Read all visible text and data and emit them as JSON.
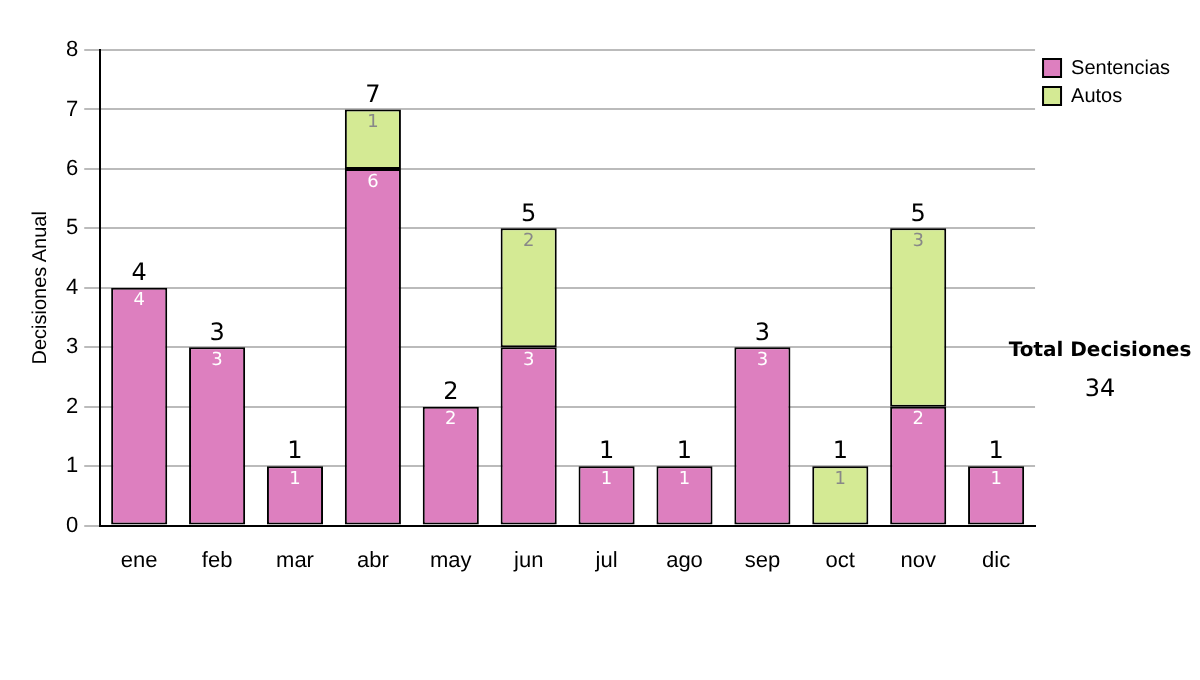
{
  "chart_data": {
    "type": "bar",
    "ylabel": "Decisiones Anual",
    "categories": [
      "ene",
      "feb",
      "mar",
      "abr",
      "may",
      "jun",
      "jul",
      "ago",
      "sep",
      "oct",
      "nov",
      "dic"
    ],
    "series": [
      {
        "name": "Sentencias",
        "color": "#dd7fbf",
        "values": [
          4,
          3,
          1,
          6,
          2,
          3,
          1,
          1,
          3,
          0,
          2,
          1
        ],
        "value_labels": [
          "4",
          "3",
          "1",
          "6",
          "2",
          "3",
          "1",
          "1",
          "3",
          null,
          "2",
          "1"
        ]
      },
      {
        "name": "Autos",
        "color": "#d4ea94",
        "values": [
          0,
          0,
          0,
          1,
          0,
          2,
          0,
          0,
          0,
          1,
          3,
          0
        ],
        "value_labels": [
          null,
          null,
          null,
          "1",
          null,
          "2",
          null,
          null,
          null,
          "1",
          "3",
          null
        ]
      }
    ],
    "stacked": true,
    "totals": [
      "4",
      "3",
      "1",
      "7",
      "2",
      "5",
      "1",
      "1",
      "3",
      "1",
      "5",
      "1"
    ],
    "ylim": [
      0,
      8
    ],
    "yticks": [
      0,
      1,
      2,
      3,
      4,
      5,
      6,
      7,
      8
    ],
    "grid": "y",
    "legend": "right",
    "annotations": [
      "Total Decisiones",
      "34"
    ]
  }
}
